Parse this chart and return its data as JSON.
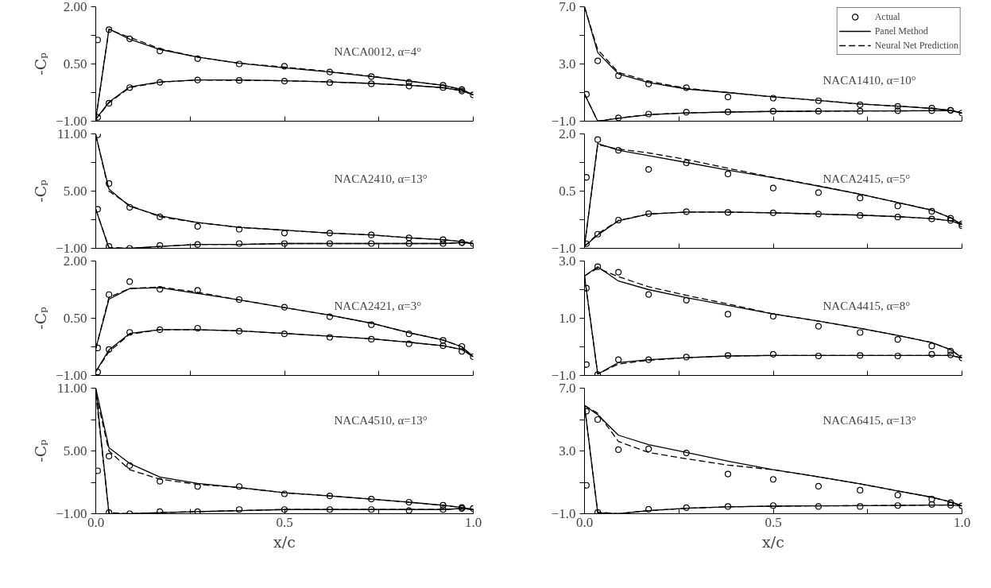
{
  "chart_data": [
    {
      "type": "line",
      "annotations": [
        "NACA0012, α=4°"
      ],
      "ylabel": "-Cₚ",
      "xlim": [
        0,
        1
      ],
      "xticks": [
        {
          "value": 0,
          "label": null
        },
        {
          "value": 0.25,
          "label": null
        },
        {
          "value": 0.5,
          "label": null
        },
        {
          "value": 0.75,
          "label": null
        },
        {
          "value": 1,
          "label": null
        }
      ],
      "ylim": [
        -1,
        2
      ],
      "yticks": [
        {
          "value": -1,
          "label": "−1.00"
        },
        {
          "value": -0.25,
          "label": null
        },
        {
          "value": 0.5,
          "label": "0.50"
        },
        {
          "value": 1.25,
          "label": null
        },
        {
          "value": 2,
          "label": "2.00"
        }
      ],
      "tick_labels": "y",
      "grid": false,
      "series": [
        {
          "type": "scatter",
          "marker": "circle",
          "color": "#000000",
          "x": [
            0.005,
            0.035,
            0.09,
            0.17,
            0.27,
            0.38,
            0.5,
            0.62,
            0.73,
            0.83,
            0.92,
            0.97
          ],
          "values": [
            1.13,
            1.4,
            1.16,
            0.84,
            0.64,
            0.5,
            0.44,
            0.29,
            0.17,
            0.02,
            -0.06,
            -0.17
          ]
        },
        {
          "type": "scatter",
          "marker": "circle",
          "color": "#000000",
          "x": [
            0.005,
            0.035,
            0.09,
            0.17,
            0.27,
            0.38,
            0.5,
            0.62,
            0.73,
            0.83,
            0.92,
            0.97,
            1.0
          ],
          "values": [
            -0.9,
            -0.53,
            -0.12,
            0.02,
            0.08,
            0.07,
            0.05,
            0.01,
            -0.02,
            -0.08,
            -0.12,
            -0.21,
            -0.31
          ]
        },
        {
          "type": "line",
          "line_style": "solid",
          "color": "#000000",
          "x": [
            0,
            0.035,
            0.09,
            0.17,
            0.27,
            0.38,
            0.5,
            0.62,
            0.73,
            0.83,
            0.92,
            0.97,
            1.0
          ],
          "values": [
            -0.95,
            1.42,
            1.15,
            0.88,
            0.68,
            0.52,
            0.4,
            0.29,
            0.17,
            0.05,
            -0.06,
            -0.17,
            -0.31
          ]
        },
        {
          "type": "line",
          "line_style": "solid",
          "color": "#000000",
          "x": [
            0,
            0.035,
            0.09,
            0.17,
            0.27,
            0.38,
            0.5,
            0.62,
            0.73,
            0.83,
            0.92,
            0.97,
            1.0
          ],
          "values": [
            -0.95,
            -0.5,
            -0.1,
            0.03,
            0.08,
            0.08,
            0.06,
            0.03,
            -0.01,
            -0.06,
            -0.12,
            -0.2,
            -0.31
          ]
        },
        {
          "type": "line",
          "line_style": "dashed",
          "color": "#000000",
          "x": [
            0,
            0.035,
            0.09,
            0.17,
            0.27,
            0.38,
            0.5,
            0.62,
            0.73,
            0.83,
            0.92,
            0.97,
            1.0
          ],
          "values": [
            -0.95,
            1.4,
            1.2,
            0.9,
            0.68,
            0.52,
            0.42,
            0.3,
            0.18,
            0.05,
            -0.06,
            -0.17,
            -0.31
          ]
        },
        {
          "type": "line",
          "line_style": "dashed",
          "color": "#000000",
          "x": [
            0,
            0.035,
            0.09,
            0.17,
            0.27,
            0.38,
            0.5,
            0.62,
            0.73,
            0.83,
            0.92,
            0.97,
            1.0
          ],
          "values": [
            -0.95,
            -0.52,
            -0.12,
            0.02,
            0.08,
            0.07,
            0.06,
            0.03,
            -0.01,
            -0.06,
            -0.12,
            -0.2,
            -0.31
          ]
        }
      ]
    },
    {
      "type": "line",
      "annotations": [
        "NACA1410, α=10°"
      ],
      "xlim": [
        0,
        1
      ],
      "xticks": [
        {
          "value": 0,
          "label": null
        },
        {
          "value": 0.25,
          "label": null
        },
        {
          "value": 0.5,
          "label": null
        },
        {
          "value": 0.75,
          "label": null
        },
        {
          "value": 1,
          "label": null
        }
      ],
      "ylim": [
        -1,
        7
      ],
      "yticks": [
        {
          "value": -1,
          "label": "−1.0"
        },
        {
          "value": 1,
          "label": null
        },
        {
          "value": 3,
          "label": "3.0"
        },
        {
          "value": 5,
          "label": null
        },
        {
          "value": 7,
          "label": "7.0"
        }
      ],
      "tick_labels": "y",
      "grid": false,
      "legend": "top right",
      "series": [
        {
          "type": "scatter",
          "marker": "circle",
          "name": "Actual",
          "color": "#000000",
          "x": [
            0.035,
            0.09,
            0.17,
            0.27,
            0.38,
            0.5,
            0.62,
            0.73,
            0.83,
            0.92,
            0.97,
            1.0
          ],
          "values": [
            3.22,
            2.18,
            1.6,
            1.34,
            0.69,
            0.61,
            0.43,
            0.15,
            0.04,
            -0.09,
            -0.24,
            -0.43
          ]
        },
        {
          "type": "scatter",
          "marker": "circle",
          "color": "#000000",
          "x": [
            0.005,
            0.09,
            0.17,
            0.27,
            0.38,
            0.5,
            0.62,
            0.73,
            0.83,
            0.92,
            0.97
          ],
          "values": [
            0.88,
            -0.77,
            -0.5,
            -0.37,
            -0.35,
            -0.3,
            -0.3,
            -0.3,
            -0.27,
            -0.27,
            -0.24
          ]
        },
        {
          "type": "line",
          "line_style": "solid",
          "name": "Panel Method",
          "color": "#000000",
          "x": [
            0,
            0.035,
            0.09,
            0.17,
            0.27,
            0.38,
            0.5,
            0.62,
            0.73,
            0.83,
            0.92,
            0.97,
            1.0
          ],
          "values": [
            7.0,
            3.8,
            2.3,
            1.7,
            1.25,
            1.0,
            0.7,
            0.45,
            0.2,
            0.05,
            -0.1,
            -0.25,
            -0.43
          ]
        },
        {
          "type": "line",
          "line_style": "solid",
          "color": "#000000",
          "x": [
            0,
            0.035,
            0.09,
            0.17,
            0.27,
            0.38,
            0.5,
            0.62,
            0.73,
            0.83,
            0.92,
            0.97,
            1.0
          ],
          "values": [
            0.9,
            -1.0,
            -0.8,
            -0.55,
            -0.42,
            -0.36,
            -0.32,
            -0.3,
            -0.29,
            -0.28,
            -0.27,
            -0.26,
            -0.43
          ]
        },
        {
          "type": "line",
          "line_style": "dashed",
          "name": "Neural Net Prediction",
          "color": "#000000",
          "x": [
            0,
            0.035,
            0.09,
            0.17,
            0.27,
            0.38,
            0.5,
            0.62,
            0.73,
            0.83,
            0.92,
            0.97,
            1.0
          ],
          "values": [
            7.0,
            4.0,
            2.4,
            1.8,
            1.3,
            1.0,
            0.7,
            0.45,
            0.2,
            0.05,
            -0.1,
            -0.25,
            -0.43
          ]
        },
        {
          "type": "line",
          "line_style": "dashed",
          "color": "#000000",
          "x": [
            0,
            0.035,
            0.09,
            0.17,
            0.27,
            0.38,
            0.5,
            0.62,
            0.73,
            0.83,
            0.92,
            0.97,
            1.0
          ],
          "values": [
            0.9,
            -1.0,
            -0.78,
            -0.53,
            -0.42,
            -0.36,
            -0.32,
            -0.3,
            -0.29,
            -0.28,
            -0.27,
            -0.26,
            -0.43
          ]
        }
      ]
    },
    {
      "type": "line",
      "annotations": [
        "NACA2410, α=13°"
      ],
      "ylabel": "-Cₚ",
      "xlim": [
        0,
        1
      ],
      "xticks": [
        {
          "value": 0,
          "label": null
        },
        {
          "value": 0.25,
          "label": null
        },
        {
          "value": 0.5,
          "label": null
        },
        {
          "value": 0.75,
          "label": null
        },
        {
          "value": 1,
          "label": null
        }
      ],
      "ylim": [
        -1,
        11
      ],
      "yticks": [
        {
          "value": -1,
          "label": "−1.00"
        },
        {
          "value": 2,
          "label": null
        },
        {
          "value": 5,
          "label": "5.00"
        },
        {
          "value": 8,
          "label": null
        },
        {
          "value": 11,
          "label": "11.00"
        }
      ],
      "tick_labels": "y",
      "grid": false,
      "series": [
        {
          "type": "scatter",
          "marker": "circle",
          "color": "#000000",
          "x": [
            0.005,
            0.035,
            0.09,
            0.17,
            0.27,
            0.38,
            0.5,
            0.62,
            0.73,
            0.83,
            0.92,
            0.97,
            1.0
          ],
          "values": [
            10.9,
            5.8,
            3.3,
            2.3,
            1.3,
            1.0,
            0.6,
            0.6,
            0.4,
            0.1,
            -0.1,
            -0.4,
            -0.5
          ]
        },
        {
          "type": "scatter",
          "marker": "circle",
          "color": "#000000",
          "x": [
            0.005,
            0.035,
            0.09,
            0.17,
            0.27,
            0.38,
            0.5,
            0.62,
            0.73,
            0.83,
            0.92,
            0.97
          ],
          "values": [
            3.1,
            -0.8,
            -1.0,
            -0.7,
            -0.6,
            -0.5,
            -0.5,
            -0.5,
            -0.5,
            -0.5,
            -0.5,
            -0.4
          ]
        },
        {
          "type": "line",
          "line_style": "solid",
          "color": "#000000",
          "x": [
            0,
            0.035,
            0.09,
            0.17,
            0.27,
            0.38,
            0.5,
            0.62,
            0.73,
            0.83,
            0.92,
            0.97,
            1.0
          ],
          "values": [
            10.9,
            5.2,
            3.4,
            2.4,
            1.7,
            1.2,
            0.9,
            0.6,
            0.4,
            0.1,
            -0.1,
            -0.3,
            -0.5
          ]
        },
        {
          "type": "line",
          "line_style": "solid",
          "color": "#000000",
          "x": [
            0,
            0.035,
            0.09,
            0.17,
            0.27,
            0.38,
            0.5,
            0.62,
            0.73,
            0.83,
            0.92,
            0.97,
            1.0
          ],
          "values": [
            3.1,
            -1.0,
            -1.0,
            -0.8,
            -0.6,
            -0.6,
            -0.5,
            -0.5,
            -0.5,
            -0.5,
            -0.5,
            -0.4,
            -0.5
          ]
        },
        {
          "type": "line",
          "line_style": "dashed",
          "color": "#000000",
          "x": [
            0,
            0.035,
            0.09,
            0.17,
            0.27,
            0.38,
            0.5,
            0.62,
            0.73,
            0.83,
            0.92,
            0.97,
            1.0
          ],
          "values": [
            10.9,
            5.0,
            3.5,
            2.3,
            1.7,
            1.2,
            0.9,
            0.6,
            0.4,
            0.1,
            -0.1,
            -0.3,
            -0.5
          ]
        },
        {
          "type": "line",
          "line_style": "dashed",
          "color": "#000000",
          "x": [
            0,
            0.035,
            0.09,
            0.17,
            0.27,
            0.38,
            0.5,
            0.62,
            0.73,
            0.83,
            0.92,
            0.97,
            1.0
          ],
          "values": [
            3.1,
            -0.9,
            -1.0,
            -0.8,
            -0.6,
            -0.6,
            -0.5,
            -0.5,
            -0.5,
            -0.5,
            -0.5,
            -0.4,
            -0.5
          ]
        }
      ]
    },
    {
      "type": "line",
      "annotations": [
        "NACA2415, α=5°"
      ],
      "xlim": [
        0,
        1
      ],
      "xticks": [
        {
          "value": 0,
          "label": null
        },
        {
          "value": 0.25,
          "label": null
        },
        {
          "value": 0.5,
          "label": null
        },
        {
          "value": 0.75,
          "label": null
        },
        {
          "value": 1,
          "label": null
        }
      ],
      "ylim": [
        -1,
        2
      ],
      "yticks": [
        {
          "value": -1,
          "label": "−1.0"
        },
        {
          "value": -0.25,
          "label": null
        },
        {
          "value": 0.5,
          "label": "0.5"
        },
        {
          "value": 1.25,
          "label": null
        },
        {
          "value": 2,
          "label": "2.0"
        }
      ],
      "tick_labels": "y",
      "grid": false,
      "series": [
        {
          "type": "scatter",
          "marker": "circle",
          "color": "#000000",
          "x": [
            0.005,
            0.035,
            0.09,
            0.17,
            0.27,
            0.38,
            0.5,
            0.62,
            0.73,
            0.83,
            0.92,
            0.97,
            1.0
          ],
          "values": [
            0.86,
            1.85,
            1.57,
            1.07,
            1.24,
            0.95,
            0.58,
            0.46,
            0.32,
            0.11,
            -0.03,
            -0.21,
            -0.36
          ]
        },
        {
          "type": "scatter",
          "marker": "circle",
          "color": "#000000",
          "x": [
            0.005,
            0.035,
            0.09,
            0.17,
            0.27,
            0.38,
            0.5,
            0.62,
            0.73,
            0.83,
            0.92,
            0.97,
            1.0
          ],
          "values": [
            -0.88,
            -0.63,
            -0.26,
            -0.09,
            -0.04,
            -0.06,
            -0.07,
            -0.1,
            -0.14,
            -0.18,
            -0.23,
            -0.27,
            -0.41
          ]
        },
        {
          "type": "line",
          "line_style": "solid",
          "color": "#000000",
          "x": [
            0,
            0.035,
            0.09,
            0.17,
            0.27,
            0.38,
            0.5,
            0.62,
            0.73,
            0.83,
            0.92,
            0.97,
            1.0
          ],
          "values": [
            -0.95,
            1.75,
            1.57,
            1.43,
            1.25,
            1.05,
            0.85,
            0.63,
            0.42,
            0.2,
            0.0,
            -0.2,
            -0.38
          ]
        },
        {
          "type": "line",
          "line_style": "solid",
          "color": "#000000",
          "x": [
            0,
            0.035,
            0.09,
            0.17,
            0.27,
            0.38,
            0.5,
            0.62,
            0.73,
            0.83,
            0.92,
            0.97,
            1.0
          ],
          "values": [
            -0.95,
            -0.65,
            -0.28,
            -0.1,
            -0.05,
            -0.05,
            -0.07,
            -0.1,
            -0.13,
            -0.17,
            -0.22,
            -0.28,
            -0.38
          ]
        },
        {
          "type": "line",
          "line_style": "dashed",
          "color": "#000000",
          "x": [
            0,
            0.035,
            0.09,
            0.17,
            0.27,
            0.38,
            0.5,
            0.62,
            0.73,
            0.83,
            0.92,
            0.97,
            1.0
          ],
          "values": [
            -0.95,
            1.72,
            1.6,
            1.5,
            1.33,
            1.1,
            0.86,
            0.64,
            0.42,
            0.2,
            0.0,
            -0.2,
            -0.38
          ]
        },
        {
          "type": "line",
          "line_style": "dashed",
          "color": "#000000",
          "x": [
            0,
            0.035,
            0.09,
            0.17,
            0.27,
            0.38,
            0.5,
            0.62,
            0.73,
            0.83,
            0.92,
            0.97,
            1.0
          ],
          "values": [
            -0.95,
            -0.62,
            -0.27,
            -0.1,
            -0.05,
            -0.05,
            -0.07,
            -0.1,
            -0.13,
            -0.17,
            -0.22,
            -0.28,
            -0.38
          ]
        }
      ]
    },
    {
      "type": "line",
      "annotations": [
        "NACA2421, α=3°"
      ],
      "ylabel": "-Cₚ",
      "xlim": [
        0,
        1
      ],
      "xticks": [
        {
          "value": 0,
          "label": null
        },
        {
          "value": 0.25,
          "label": null
        },
        {
          "value": 0.5,
          "label": null
        },
        {
          "value": 0.75,
          "label": null
        },
        {
          "value": 1,
          "label": null
        }
      ],
      "ylim": [
        -1,
        2
      ],
      "yticks": [
        {
          "value": -1,
          "label": "−1.00"
        },
        {
          "value": -0.25,
          "label": null
        },
        {
          "value": 0.5,
          "label": "0.50"
        },
        {
          "value": 1.25,
          "label": null
        },
        {
          "value": 2,
          "label": "2.00"
        }
      ],
      "tick_labels": "y",
      "grid": false,
      "series": [
        {
          "type": "scatter",
          "marker": "circle",
          "color": "#000000",
          "x": [
            0.005,
            0.035,
            0.09,
            0.17,
            0.27,
            0.38,
            0.5,
            0.62,
            0.73,
            0.83,
            0.92,
            0.97
          ],
          "values": [
            -0.28,
            1.12,
            1.46,
            1.26,
            1.23,
            0.99,
            0.79,
            0.54,
            0.33,
            0.09,
            -0.08,
            -0.24
          ]
        },
        {
          "type": "scatter",
          "marker": "circle",
          "color": "#000000",
          "x": [
            0.005,
            0.035,
            0.09,
            0.17,
            0.27,
            0.38,
            0.5,
            0.62,
            0.73,
            0.83,
            0.92,
            0.97,
            1.0
          ],
          "values": [
            -0.91,
            -0.32,
            0.13,
            0.2,
            0.24,
            0.16,
            0.09,
            0.0,
            -0.05,
            -0.17,
            -0.22,
            -0.37,
            -0.51
          ]
        },
        {
          "type": "line",
          "line_style": "solid",
          "color": "#000000",
          "x": [
            0,
            0.035,
            0.09,
            0.17,
            0.27,
            0.38,
            0.5,
            0.62,
            0.73,
            0.83,
            0.92,
            0.97,
            1.0
          ],
          "values": [
            -0.3,
            1.0,
            1.28,
            1.3,
            1.15,
            0.98,
            0.78,
            0.58,
            0.37,
            0.12,
            -0.07,
            -0.25,
            -0.51
          ]
        },
        {
          "type": "line",
          "line_style": "solid",
          "color": "#000000",
          "x": [
            0,
            0.035,
            0.09,
            0.17,
            0.27,
            0.38,
            0.5,
            0.62,
            0.73,
            0.83,
            0.92,
            0.97,
            1.0
          ],
          "values": [
            -0.9,
            -0.33,
            0.1,
            0.2,
            0.2,
            0.17,
            0.1,
            0.03,
            -0.04,
            -0.13,
            -0.22,
            -0.32,
            -0.51
          ]
        },
        {
          "type": "line",
          "line_style": "dashed",
          "color": "#000000",
          "x": [
            0,
            0.035,
            0.09,
            0.17,
            0.27,
            0.38,
            0.5,
            0.62,
            0.73,
            0.83,
            0.92,
            0.97,
            1.0
          ],
          "values": [
            -0.3,
            1.05,
            1.28,
            1.32,
            1.18,
            0.98,
            0.78,
            0.58,
            0.37,
            0.12,
            -0.07,
            -0.25,
            -0.51
          ]
        },
        {
          "type": "line",
          "line_style": "dashed",
          "color": "#000000",
          "x": [
            0,
            0.035,
            0.09,
            0.17,
            0.27,
            0.38,
            0.5,
            0.62,
            0.73,
            0.83,
            0.92,
            0.97,
            1.0
          ],
          "values": [
            -0.9,
            -0.38,
            0.08,
            0.2,
            0.2,
            0.17,
            0.1,
            0.03,
            -0.04,
            -0.13,
            -0.22,
            -0.32,
            -0.51
          ]
        }
      ]
    },
    {
      "type": "line",
      "annotations": [
        "NACA4415, α=8°"
      ],
      "xlim": [
        0,
        1
      ],
      "xticks": [
        {
          "value": 0,
          "label": null
        },
        {
          "value": 0.25,
          "label": null
        },
        {
          "value": 0.5,
          "label": null
        },
        {
          "value": 0.75,
          "label": null
        },
        {
          "value": 1,
          "label": null
        }
      ],
      "ylim": [
        -1,
        3
      ],
      "yticks": [
        {
          "value": -1,
          "label": "−1.0"
        },
        {
          "value": 0,
          "label": null
        },
        {
          "value": 1,
          "label": "1.0"
        },
        {
          "value": 2,
          "label": null
        },
        {
          "value": 3,
          "label": "3.0"
        }
      ],
      "tick_labels": "y",
      "grid": false,
      "series": [
        {
          "type": "scatter",
          "marker": "circle",
          "color": "#000000",
          "x": [
            0.005,
            0.035,
            0.09,
            0.17,
            0.27,
            0.38,
            0.5,
            0.62,
            0.73,
            0.83,
            0.92,
            0.97
          ],
          "values": [
            2.05,
            2.8,
            2.61,
            1.83,
            1.63,
            1.14,
            1.07,
            0.72,
            0.5,
            0.26,
            0.03,
            -0.15
          ]
        },
        {
          "type": "scatter",
          "marker": "circle",
          "color": "#000000",
          "x": [
            0.005,
            0.035,
            0.09,
            0.17,
            0.27,
            0.38,
            0.5,
            0.62,
            0.73,
            0.83,
            0.92,
            0.97,
            1.0
          ],
          "values": [
            -0.62,
            -0.97,
            -0.45,
            -0.45,
            -0.36,
            -0.3,
            -0.26,
            -0.32,
            -0.3,
            -0.32,
            -0.26,
            -0.28,
            -0.39
          ]
        },
        {
          "type": "line",
          "line_style": "solid",
          "color": "#000000",
          "x": [
            0,
            0.035,
            0.09,
            0.17,
            0.27,
            0.38,
            0.5,
            0.62,
            0.73,
            0.83,
            0.92,
            0.97,
            1.0
          ],
          "values": [
            2.48,
            2.8,
            2.3,
            2.0,
            1.72,
            1.45,
            1.15,
            0.9,
            0.65,
            0.4,
            0.15,
            -0.1,
            -0.39
          ]
        },
        {
          "type": "line",
          "line_style": "solid",
          "color": "#000000",
          "x": [
            0,
            0.035,
            0.09,
            0.17,
            0.27,
            0.38,
            0.5,
            0.62,
            0.73,
            0.83,
            0.92,
            0.97,
            1.0
          ],
          "values": [
            2.48,
            -0.95,
            -0.55,
            -0.45,
            -0.38,
            -0.32,
            -0.3,
            -0.3,
            -0.3,
            -0.3,
            -0.3,
            -0.3,
            -0.39
          ]
        },
        {
          "type": "line",
          "line_style": "dashed",
          "color": "#000000",
          "x": [
            0,
            0.035,
            0.09,
            0.17,
            0.27,
            0.38,
            0.5,
            0.62,
            0.73,
            0.83,
            0.92,
            0.97,
            1.0
          ],
          "values": [
            2.48,
            2.75,
            2.45,
            2.1,
            1.8,
            1.5,
            1.15,
            0.9,
            0.65,
            0.4,
            0.15,
            -0.1,
            -0.39
          ]
        },
        {
          "type": "line",
          "line_style": "dashed",
          "color": "#000000",
          "x": [
            0,
            0.035,
            0.09,
            0.17,
            0.27,
            0.38,
            0.5,
            0.62,
            0.73,
            0.83,
            0.92,
            0.97,
            1.0
          ],
          "values": [
            2.48,
            -0.95,
            -0.6,
            -0.47,
            -0.38,
            -0.32,
            -0.3,
            -0.3,
            -0.3,
            -0.3,
            -0.3,
            -0.3,
            -0.39
          ]
        }
      ]
    },
    {
      "type": "line",
      "annotations": [
        "NACA4510, α=13°"
      ],
      "ylabel": "-Cₚ",
      "xlabel": "x/c",
      "xlim": [
        0,
        1
      ],
      "xticks": [
        {
          "value": 0,
          "label": "0.0"
        },
        {
          "value": 0.25,
          "label": null
        },
        {
          "value": 0.5,
          "label": "0.5"
        },
        {
          "value": 0.75,
          "label": null
        },
        {
          "value": 1,
          "label": "1.0"
        }
      ],
      "ylim": [
        -1,
        11
      ],
      "yticks": [
        {
          "value": -1,
          "label": "−1.00"
        },
        {
          "value": 2,
          "label": null
        },
        {
          "value": 5,
          "label": "5.00"
        },
        {
          "value": 8,
          "label": null
        },
        {
          "value": 11,
          "label": "11.00"
        }
      ],
      "grid": false,
      "series": [
        {
          "type": "scatter",
          "marker": "circle",
          "color": "#000000",
          "x": [
            0.035,
            0.09,
            0.17,
            0.27,
            0.38,
            0.5,
            0.62,
            0.73,
            0.83,
            0.92,
            0.97,
            1.0
          ],
          "values": [
            4.5,
            3.6,
            2.1,
            1.6,
            1.6,
            0.9,
            0.7,
            0.4,
            0.1,
            -0.2,
            -0.4,
            -0.5
          ]
        },
        {
          "type": "scatter",
          "marker": "circle",
          "color": "#000000",
          "x": [
            0.005,
            0.035,
            0.09,
            0.17,
            0.27,
            0.38,
            0.5,
            0.62,
            0.73,
            0.83,
            0.92,
            0.97
          ],
          "values": [
            3.1,
            -0.9,
            -1.0,
            -0.8,
            -0.8,
            -0.6,
            -0.6,
            -0.6,
            -0.6,
            -0.7,
            -0.6,
            -0.5
          ]
        },
        {
          "type": "line",
          "line_style": "solid",
          "color": "#000000",
          "x": [
            0,
            0.035,
            0.09,
            0.17,
            0.27,
            0.38,
            0.5,
            0.62,
            0.73,
            0.83,
            0.92,
            0.97,
            1.0
          ],
          "values": [
            11.0,
            5.3,
            3.8,
            2.5,
            1.9,
            1.5,
            1.0,
            0.7,
            0.4,
            0.1,
            -0.2,
            -0.4,
            -0.6
          ]
        },
        {
          "type": "line",
          "line_style": "solid",
          "color": "#000000",
          "x": [
            0,
            0.035,
            0.09,
            0.17,
            0.27,
            0.38,
            0.5,
            0.62,
            0.73,
            0.83,
            0.92,
            0.97,
            1.0
          ],
          "values": [
            11.0,
            -1.0,
            -1.0,
            -0.9,
            -0.8,
            -0.7,
            -0.6,
            -0.6,
            -0.6,
            -0.6,
            -0.6,
            -0.5,
            -0.6
          ]
        },
        {
          "type": "line",
          "line_style": "dashed",
          "color": "#000000",
          "x": [
            0,
            0.035,
            0.09,
            0.17,
            0.27,
            0.38,
            0.5,
            0.62,
            0.73,
            0.83,
            0.92,
            0.97,
            1.0
          ],
          "values": [
            10.5,
            5.0,
            3.2,
            2.3,
            1.8,
            1.5,
            1.0,
            0.7,
            0.4,
            0.1,
            -0.2,
            -0.4,
            -0.6
          ]
        },
        {
          "type": "line",
          "line_style": "dashed",
          "color": "#000000",
          "x": [
            0,
            0.035,
            0.09,
            0.17,
            0.27,
            0.38,
            0.5,
            0.62,
            0.73,
            0.83,
            0.92,
            0.97,
            1.0
          ],
          "values": [
            10.5,
            -0.9,
            -1.0,
            -0.9,
            -0.8,
            -0.7,
            -0.6,
            -0.6,
            -0.6,
            -0.6,
            -0.6,
            -0.5,
            -0.6
          ]
        }
      ]
    },
    {
      "type": "line",
      "annotations": [
        "NACA6415, α=13°"
      ],
      "xlabel": "x/c",
      "xlim": [
        0,
        1
      ],
      "xticks": [
        {
          "value": 0,
          "label": "0.0"
        },
        {
          "value": 0.25,
          "label": null
        },
        {
          "value": 0.5,
          "label": "0.5"
        },
        {
          "value": 0.75,
          "label": null
        },
        {
          "value": 1,
          "label": "1.0"
        }
      ],
      "ylim": [
        -1,
        7
      ],
      "yticks": [
        {
          "value": -1,
          "label": "−1.0"
        },
        {
          "value": 1,
          "label": null
        },
        {
          "value": 3,
          "label": "3.0"
        },
        {
          "value": 5,
          "label": null
        },
        {
          "value": 7,
          "label": "7.0"
        }
      ],
      "grid": false,
      "series": [
        {
          "type": "scatter",
          "marker": "circle",
          "color": "#000000",
          "x": [
            0.005,
            0.035,
            0.09,
            0.17,
            0.27,
            0.38,
            0.5,
            0.62,
            0.73,
            0.83,
            0.92,
            0.97
          ],
          "values": [
            5.53,
            5.0,
            3.08,
            3.13,
            2.87,
            1.53,
            1.19,
            0.75,
            0.5,
            0.19,
            -0.07,
            -0.3
          ]
        },
        {
          "type": "scatter",
          "marker": "circle",
          "color": "#000000",
          "x": [
            0.005,
            0.035,
            0.17,
            0.27,
            0.38,
            0.5,
            0.62,
            0.73,
            0.83,
            0.92,
            0.97,
            1.0
          ],
          "values": [
            0.81,
            -0.92,
            -0.72,
            -0.61,
            -0.54,
            -0.48,
            -0.54,
            -0.54,
            -0.48,
            -0.41,
            -0.46,
            -0.5
          ]
        },
        {
          "type": "line",
          "line_style": "solid",
          "color": "#000000",
          "x": [
            0,
            0.035,
            0.09,
            0.17,
            0.27,
            0.38,
            0.5,
            0.62,
            0.73,
            0.83,
            0.92,
            0.97,
            1.0
          ],
          "values": [
            5.9,
            5.3,
            4.0,
            3.4,
            2.9,
            2.35,
            1.8,
            1.35,
            0.9,
            0.45,
            0.05,
            -0.25,
            -0.5
          ]
        },
        {
          "type": "line",
          "line_style": "solid",
          "color": "#000000",
          "x": [
            0,
            0.035,
            0.09,
            0.17,
            0.27,
            0.38,
            0.5,
            0.62,
            0.73,
            0.83,
            0.92,
            0.97,
            1.0
          ],
          "values": [
            5.9,
            -0.95,
            -1.0,
            -0.8,
            -0.65,
            -0.56,
            -0.52,
            -0.5,
            -0.49,
            -0.47,
            -0.45,
            -0.45,
            -0.5
          ]
        },
        {
          "type": "line",
          "line_style": "dashed",
          "color": "#000000",
          "x": [
            0,
            0.035,
            0.09,
            0.17,
            0.27,
            0.38,
            0.5,
            0.62,
            0.73,
            0.83,
            0.92,
            0.97,
            1.0
          ],
          "values": [
            5.9,
            5.4,
            3.6,
            2.9,
            2.5,
            2.1,
            1.8,
            1.35,
            0.9,
            0.45,
            0.05,
            -0.25,
            -0.5
          ]
        },
        {
          "type": "line",
          "line_style": "dashed",
          "color": "#000000",
          "x": [
            0,
            0.035,
            0.09,
            0.17,
            0.27,
            0.38,
            0.5,
            0.62,
            0.73,
            0.83,
            0.92,
            0.97,
            1.0
          ],
          "values": [
            5.9,
            -0.9,
            -1.0,
            -0.8,
            -0.65,
            -0.56,
            -0.52,
            -0.5,
            -0.49,
            -0.47,
            -0.45,
            -0.45,
            -0.5
          ]
        }
      ]
    }
  ]
}
